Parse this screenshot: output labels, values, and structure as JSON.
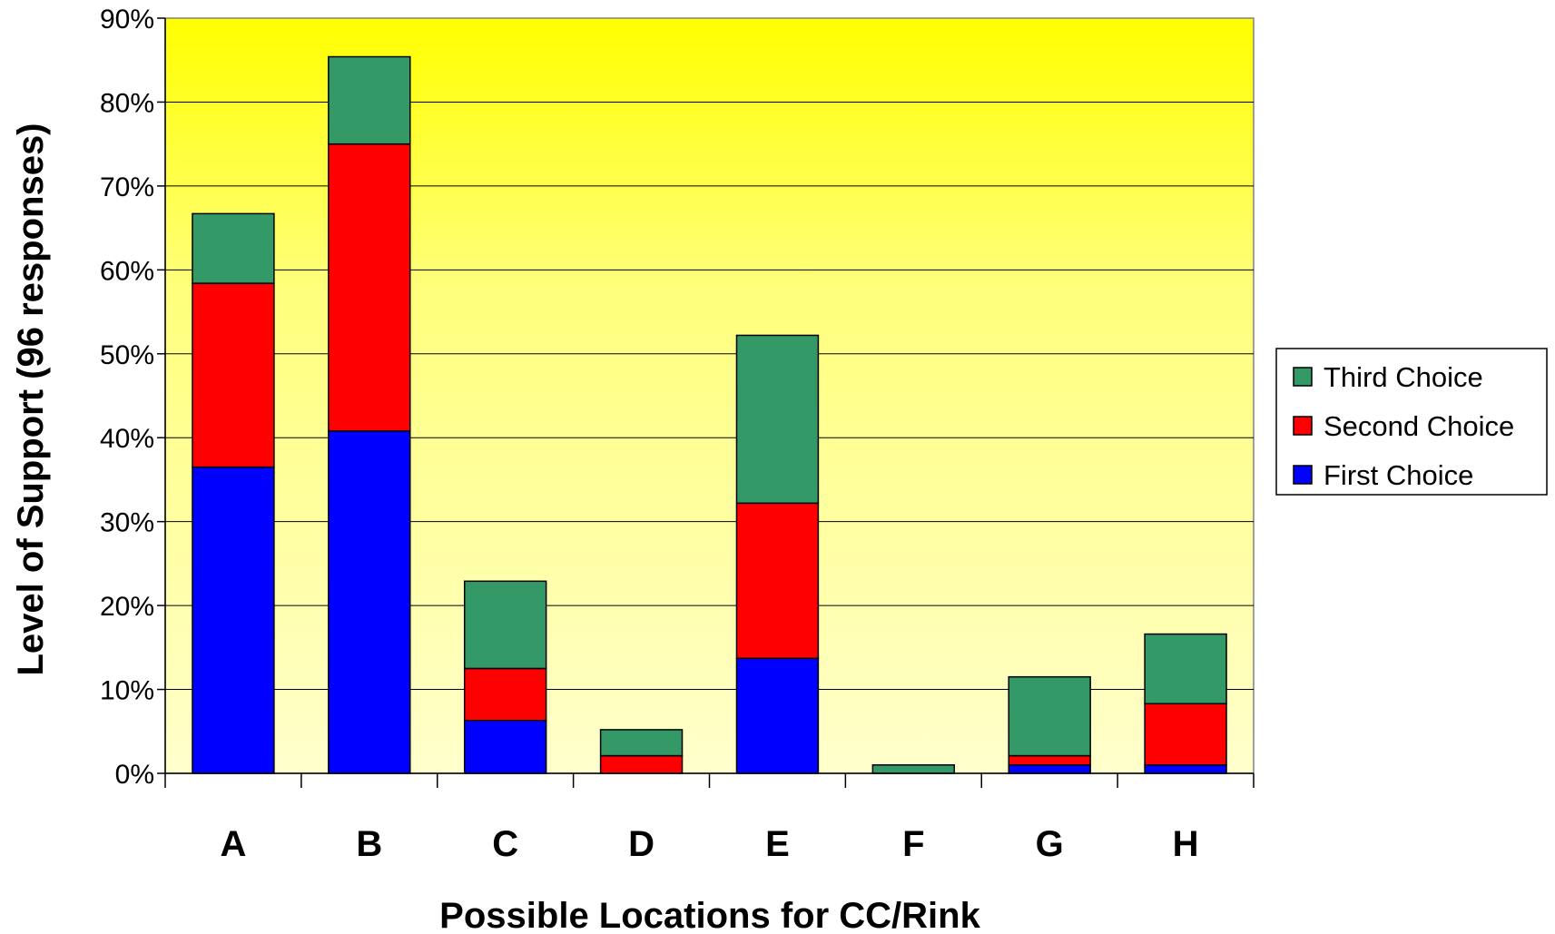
{
  "chart_data": {
    "type": "bar",
    "stacked": true,
    "categories": [
      "A",
      "B",
      "C",
      "D",
      "E",
      "F",
      "G",
      "H"
    ],
    "series": [
      {
        "name": "First Choice",
        "color": "#0000ff",
        "values": [
          36.5,
          40.8,
          6.3,
          0,
          13.7,
          0,
          1.0,
          1.0
        ]
      },
      {
        "name": "Second Choice",
        "color": "#ff0000",
        "values": [
          21.9,
          34.2,
          6.2,
          2.1,
          18.5,
          0,
          1.1,
          7.3
        ]
      },
      {
        "name": "Third Choice",
        "color": "#339966",
        "values": [
          8.3,
          10.4,
          10.4,
          3.1,
          20.0,
          1.0,
          9.4,
          8.3
        ]
      }
    ],
    "yticks": [
      "0%",
      "10%",
      "20%",
      "30%",
      "40%",
      "50%",
      "60%",
      "70%",
      "80%",
      "90%"
    ],
    "ylim": [
      0,
      90
    ],
    "xlabel": "Possible Locations for CC/Rink",
    "ylabel": "Level of Support (96 responses)",
    "grid": true,
    "legend_position": "right",
    "legend_order": [
      "Third Choice",
      "Second Choice",
      "First Choice"
    ],
    "background": "gradient yellow to light yellow"
  }
}
